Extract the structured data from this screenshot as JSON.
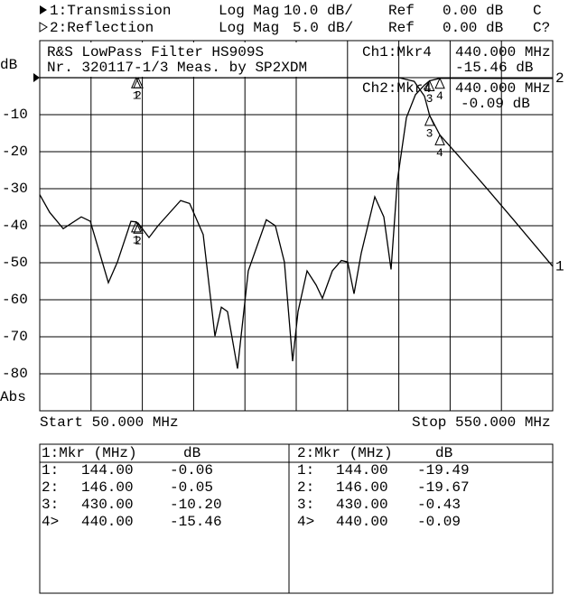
{
  "header": {
    "ch1": {
      "label": "1:Transmission",
      "format": "Log Mag",
      "scale": "10.0 dB/",
      "ref_label": "Ref",
      "ref": "0.00 dB",
      "flag": "C"
    },
    "ch2": {
      "label": "2:Reflection",
      "format": "Log Mag",
      "scale": "5.0 dB/",
      "ref_label": "Ref",
      "ref": "0.00 dB",
      "flag": "C?"
    }
  },
  "chart_data": {
    "type": "line",
    "title": "R&S LowPass Filter HS909S",
    "subtitle": "Nr. 320117-1/3 Meas. by SP2XDM",
    "readout": {
      "ch1": "Ch1:Mkr4",
      "ch1_freq": "440.000 MHz",
      "ch1_value": "-15.46 dB",
      "ch2": "Ch2:Mkr4",
      "ch2_freq": "440.000 MHz",
      "ch2_value": "-0.09 dB"
    },
    "y_unit": "dB",
    "y_format": "Abs",
    "start_label": "Start 50.000 MHz",
    "stop_label": "Stop 550.000 MHz",
    "xlim": [
      50,
      550
    ],
    "xticks": [
      50,
      100,
      150,
      200,
      250,
      300,
      350,
      400,
      450,
      500,
      550
    ],
    "ylim": [
      -90,
      10
    ],
    "yticks": [
      -10,
      -20,
      -30,
      -40,
      -50,
      -60,
      -70,
      -80
    ],
    "y2lim": [
      -45,
      5
    ],
    "ref_level": 0,
    "grid": true,
    "series": [
      {
        "trace_label": "1",
        "color": "#000000",
        "axis": "y",
        "x": [
          50,
          144,
          146,
          400,
          415,
          425,
          430,
          440,
          460,
          486.6,
          513,
          550
        ],
        "values": [
          0,
          -0.06,
          -0.05,
          0,
          -1,
          -5,
          -10.2,
          -15.46,
          -21.7,
          -30.2,
          -38.8,
          -51
        ]
      },
      {
        "trace_label": "2",
        "color": "#000000",
        "axis": "y2",
        "x": [
          50,
          59.7,
          72.9,
          90.5,
          99.3,
          116.9,
          125.7,
          138.9,
          144,
          146,
          156.5,
          165.3,
          187.3,
          196.1,
          209.3,
          220.8,
          227,
          233,
          242.8,
          253.3,
          270.9,
          279.7,
          288.5,
          296.5,
          301.8,
          310.6,
          319.4,
          325.5,
          335.2,
          344,
          350.2,
          356.3,
          363.4,
          376.6,
          385.4,
          392.4,
          398.6,
          407.4,
          416.2,
          425,
          430,
          440,
          500,
          550
        ],
        "values": [
          -15.8,
          -18.2,
          -20.4,
          -18.8,
          -19.4,
          -27.7,
          -24.9,
          -19.4,
          -19.49,
          -19.67,
          -21.6,
          -20,
          -16.6,
          -17,
          -21.2,
          -34.9,
          -31,
          -31.6,
          -39.3,
          -26.1,
          -19.2,
          -20,
          -24.9,
          -38.3,
          -31.6,
          -26.1,
          -28,
          -29.8,
          -26.1,
          -24.7,
          -24.9,
          -29.2,
          -23.7,
          -16.1,
          -18.8,
          -25.9,
          -13.9,
          -5.4,
          -2.3,
          -1,
          -0.43,
          -0.09,
          -0.1,
          -0.1
        ]
      }
    ],
    "markers": [
      {
        "label": "1",
        "x": 144,
        "ch1": -0.06,
        "ch2": -19.49
      },
      {
        "label": "2",
        "x": 146,
        "ch1": -0.05,
        "ch2": -19.67
      },
      {
        "label": "3",
        "x": 430,
        "ch1": -10.2,
        "ch2": -0.43
      },
      {
        "label": "4",
        "x": 440,
        "ch1": -15.46,
        "ch2": -0.09
      }
    ]
  },
  "tables": [
    {
      "title": "1:Mkr (MHz)",
      "unit": "dB",
      "rows": [
        [
          "1:",
          "144.00",
          "-0.06"
        ],
        [
          "2:",
          "146.00",
          "-0.05"
        ],
        [
          "3:",
          "430.00",
          "-10.20"
        ],
        [
          "4>",
          "440.00",
          "-15.46"
        ]
      ]
    },
    {
      "title": "2:Mkr (MHz)",
      "unit": "dB",
      "rows": [
        [
          "1:",
          "144.00",
          "-19.49"
        ],
        [
          "2:",
          "146.00",
          "-19.67"
        ],
        [
          "3:",
          "430.00",
          "-0.43"
        ],
        [
          "4>",
          "440.00",
          "-0.09"
        ]
      ]
    }
  ]
}
